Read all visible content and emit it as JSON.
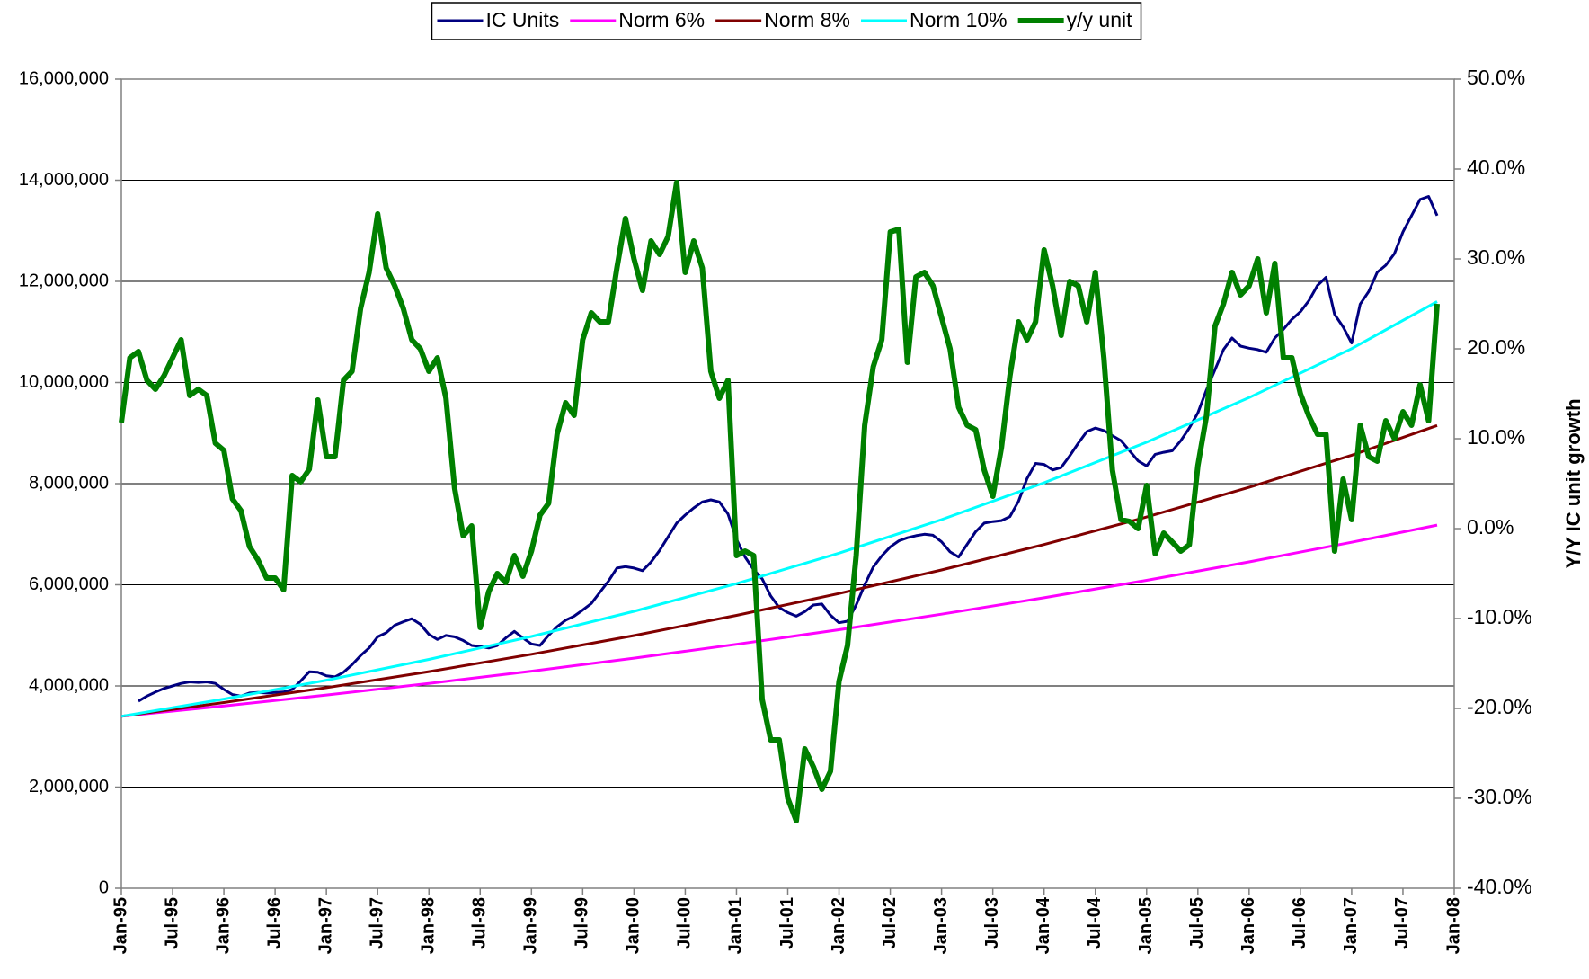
{
  "chart_data": {
    "type": "line",
    "x": [
      "1995-01",
      "1995-02",
      "1995-03",
      "1995-04",
      "1995-05",
      "1995-06",
      "1995-07",
      "1995-08",
      "1995-09",
      "1995-10",
      "1995-11",
      "1995-12",
      "1996-01",
      "1996-02",
      "1996-03",
      "1996-04",
      "1996-05",
      "1996-06",
      "1996-07",
      "1996-08",
      "1996-09",
      "1996-10",
      "1996-11",
      "1996-12",
      "1997-01",
      "1997-02",
      "1997-03",
      "1997-04",
      "1997-05",
      "1997-06",
      "1997-07",
      "1997-08",
      "1997-09",
      "1997-10",
      "1997-11",
      "1997-12",
      "1998-01",
      "1998-02",
      "1998-03",
      "1998-04",
      "1998-05",
      "1998-06",
      "1998-07",
      "1998-08",
      "1998-09",
      "1998-10",
      "1998-11",
      "1998-12",
      "1999-01",
      "1999-02",
      "1999-03",
      "1999-04",
      "1999-05",
      "1999-06",
      "1999-07",
      "1999-08",
      "1999-09",
      "1999-10",
      "1999-11",
      "1999-12",
      "2000-01",
      "2000-02",
      "2000-03",
      "2000-04",
      "2000-05",
      "2000-06",
      "2000-07",
      "2000-08",
      "2000-09",
      "2000-10",
      "2000-11",
      "2000-12",
      "2001-01",
      "2001-02",
      "2001-03",
      "2001-04",
      "2001-05",
      "2001-06",
      "2001-07",
      "2001-08",
      "2001-09",
      "2001-10",
      "2001-11",
      "2001-12",
      "2002-01",
      "2002-02",
      "2002-03",
      "2002-04",
      "2002-05",
      "2002-06",
      "2002-07",
      "2002-08",
      "2002-09",
      "2002-10",
      "2002-11",
      "2002-12",
      "2003-01",
      "2003-02",
      "2003-03",
      "2003-04",
      "2003-05",
      "2003-06",
      "2003-07",
      "2003-08",
      "2003-09",
      "2003-10",
      "2003-11",
      "2003-12",
      "2004-01",
      "2004-02",
      "2004-03",
      "2004-04",
      "2004-05",
      "2004-06",
      "2004-07",
      "2004-08",
      "2004-09",
      "2004-10",
      "2004-11",
      "2004-12",
      "2005-01",
      "2005-02",
      "2005-03",
      "2005-04",
      "2005-05",
      "2005-06",
      "2005-07",
      "2005-08",
      "2005-09",
      "2005-10",
      "2005-11",
      "2005-12",
      "2006-01",
      "2006-02",
      "2006-03",
      "2006-04",
      "2006-05",
      "2006-06",
      "2006-07",
      "2006-08",
      "2006-09",
      "2006-10",
      "2006-11",
      "2006-12",
      "2007-01",
      "2007-02",
      "2007-03",
      "2007-04",
      "2007-05",
      "2007-06",
      "2007-07",
      "2007-08",
      "2007-09",
      "2007-10",
      "2007-11"
    ],
    "series": [
      {
        "name": "IC Units",
        "color": "#000080",
        "values": [
          null,
          null,
          3700000,
          3800000,
          3880000,
          3950000,
          4000000,
          4050000,
          4080000,
          4070000,
          4080000,
          4050000,
          3930000,
          3830000,
          3800000,
          3860000,
          3870000,
          3860000,
          3870000,
          3880000,
          3930000,
          4100000,
          4280000,
          4270000,
          4200000,
          4180000,
          4270000,
          4420000,
          4600000,
          4750000,
          4970000,
          5050000,
          5200000,
          5270000,
          5330000,
          5220000,
          5020000,
          4920000,
          5000000,
          4970000,
          4900000,
          4800000,
          4780000,
          4750000,
          4800000,
          4950000,
          5080000,
          4950000,
          4830000,
          4800000,
          5000000,
          5170000,
          5300000,
          5380000,
          5500000,
          5630000,
          5850000,
          6070000,
          6330000,
          6360000,
          6330000,
          6280000,
          6450000,
          6680000,
          6950000,
          7220000,
          7380000,
          7520000,
          7640000,
          7680000,
          7640000,
          7400000,
          6900000,
          6550000,
          6300000,
          6120000,
          5780000,
          5550000,
          5450000,
          5380000,
          5470000,
          5600000,
          5620000,
          5400000,
          5250000,
          5280000,
          5600000,
          6000000,
          6350000,
          6570000,
          6750000,
          6870000,
          6930000,
          6970000,
          7000000,
          6980000,
          6850000,
          6650000,
          6550000,
          6800000,
          7050000,
          7220000,
          7250000,
          7270000,
          7350000,
          7650000,
          8100000,
          8400000,
          8380000,
          8270000,
          8320000,
          8550000,
          8800000,
          9030000,
          9100000,
          9050000,
          8950000,
          8850000,
          8650000,
          8450000,
          8350000,
          8580000,
          8620000,
          8650000,
          8850000,
          9100000,
          9400000,
          9850000,
          10250000,
          10650000,
          10880000,
          10720000,
          10680000,
          10650000,
          10600000,
          10880000,
          11050000,
          11250000,
          11400000,
          11620000,
          11920000,
          12080000,
          11350000,
          11100000,
          10780000,
          11550000,
          11800000,
          12180000,
          12320000,
          12550000,
          12980000,
          13300000,
          13620000,
          13680000,
          13300000
        ]
      },
      {
        "name": "Norm 6%",
        "color": "#ff00ff",
        "x": [
          "1995-01",
          "1996-01",
          "1997-01",
          "1998-01",
          "1999-01",
          "2000-01",
          "2001-01",
          "2002-01",
          "2003-01",
          "2004-01",
          "2005-01",
          "2006-01",
          "2007-01",
          "2007-11"
        ],
        "values": [
          3400000,
          3604000,
          3820000,
          4049000,
          4292000,
          4550000,
          4823000,
          5112000,
          5419000,
          5744000,
          6089000,
          6454000,
          6841000,
          7180000
        ]
      },
      {
        "name": "Norm 8%",
        "color": "#800000",
        "x": [
          "1995-01",
          "1996-01",
          "1997-01",
          "1998-01",
          "1999-01",
          "2000-01",
          "2001-01",
          "2002-01",
          "2003-01",
          "2004-01",
          "2005-01",
          "2006-01",
          "2007-01",
          "2007-11"
        ],
        "values": [
          3400000,
          3672000,
          3966000,
          4283000,
          4626000,
          4996000,
          5395000,
          5827000,
          6293000,
          6797000,
          7340000,
          7927000,
          8562000,
          9150000
        ]
      },
      {
        "name": "Norm 10%",
        "color": "#00ffff",
        "x": [
          "1995-01",
          "1996-01",
          "1997-01",
          "1998-01",
          "1999-01",
          "2000-01",
          "2001-01",
          "2002-01",
          "2003-01",
          "2004-01",
          "2005-01",
          "2006-01",
          "2007-01",
          "2007-11"
        ],
        "values": [
          3400000,
          3740000,
          4114000,
          4525000,
          4978000,
          5476000,
          6023000,
          6626000,
          7288000,
          8017000,
          8819000,
          9701000,
          10671000,
          11600000
        ]
      },
      {
        "name": "y/y unit",
        "color": "#008000",
        "axis": "y2",
        "values": [
          11.8,
          19,
          19.7,
          16.5,
          15.5,
          17,
          19,
          21,
          14.8,
          15.5,
          14.8,
          9.5,
          8.7,
          3.3,
          2,
          -2,
          -3.5,
          -5.5,
          -5.5,
          -6.8,
          5.9,
          5.2,
          6.6,
          14.3,
          8,
          8,
          16.5,
          17.5,
          24.5,
          28.5,
          35,
          29,
          27,
          24.5,
          21,
          20,
          17.5,
          19,
          14.5,
          4.5,
          -0.8,
          0.3,
          -11,
          -7,
          -5,
          -6,
          -3,
          -5.3,
          -2.5,
          1.5,
          2.8,
          10.5,
          14,
          12.6,
          21,
          24,
          23,
          23,
          29,
          34.5,
          30,
          26.5,
          32,
          30.5,
          32.5,
          38.5,
          28.5,
          32,
          29,
          17.5,
          14.5,
          16.5,
          -3,
          -2.5,
          -3,
          -19,
          -23.5,
          -23.5,
          -30,
          -32.5,
          -24.5,
          -26.5,
          -29,
          -27,
          -17,
          -13,
          -3,
          11.5,
          18,
          21,
          33,
          33.3,
          18.5,
          28,
          28.5,
          27,
          23.5,
          20,
          13.5,
          11.5,
          11,
          6.5,
          3.6,
          9,
          17,
          23,
          21,
          23,
          31,
          27,
          21.5,
          27.5,
          27,
          23,
          28.5,
          19,
          6.5,
          1,
          0.8,
          0,
          4.8,
          -2.8,
          -0.5,
          -1.5,
          -2.5,
          -1.8,
          7,
          12.5,
          22.5,
          25,
          28.5,
          26,
          27,
          30,
          24,
          29.5,
          19,
          19,
          15,
          12.5,
          10.5,
          10.5,
          -2.5,
          5.5,
          1,
          11.5,
          8,
          7.5,
          12,
          10,
          13,
          11.5,
          16,
          12,
          25
        ]
      }
    ],
    "xlim": [
      "1995-01",
      "2008-01"
    ],
    "xticks": [
      {
        "value": "1995-01",
        "label": "Jan-95"
      },
      {
        "value": "1995-07",
        "label": "Jul-95"
      },
      {
        "value": "1996-01",
        "label": "Jan-96"
      },
      {
        "value": "1996-07",
        "label": "Jul-96"
      },
      {
        "value": "1997-01",
        "label": "Jan-97"
      },
      {
        "value": "1997-07",
        "label": "Jul-97"
      },
      {
        "value": "1998-01",
        "label": "Jan-98"
      },
      {
        "value": "1998-07",
        "label": "Jul-98"
      },
      {
        "value": "1999-01",
        "label": "Jan-99"
      },
      {
        "value": "1999-07",
        "label": "Jul-99"
      },
      {
        "value": "2000-01",
        "label": "Jan-00"
      },
      {
        "value": "2000-07",
        "label": "Jul-00"
      },
      {
        "value": "2001-01",
        "label": "Jan-01"
      },
      {
        "value": "2001-07",
        "label": "Jul-01"
      },
      {
        "value": "2002-01",
        "label": "Jan-02"
      },
      {
        "value": "2002-07",
        "label": "Jul-02"
      },
      {
        "value": "2003-01",
        "label": "Jan-03"
      },
      {
        "value": "2003-07",
        "label": "Jul-03"
      },
      {
        "value": "2004-01",
        "label": "Jan-04"
      },
      {
        "value": "2004-07",
        "label": "Jul-04"
      },
      {
        "value": "2005-01",
        "label": "Jan-05"
      },
      {
        "value": "2005-07",
        "label": "Jul-05"
      },
      {
        "value": "2006-01",
        "label": "Jan-06"
      },
      {
        "value": "2006-07",
        "label": "Jul-06"
      },
      {
        "value": "2007-01",
        "label": "Jan-07"
      },
      {
        "value": "2007-07",
        "label": "Jul-07"
      },
      {
        "value": "2008-01",
        "label": "Jan-08"
      }
    ],
    "ylim": [
      0,
      16000000
    ],
    "yticks": [
      0,
      {
        "value": 2000000,
        "label": "2,000,000"
      },
      {
        "value": 4000000,
        "label": "4,000,000"
      },
      {
        "value": 6000000,
        "label": "6,000,000"
      },
      {
        "value": 8000000,
        "label": "8,000,000"
      },
      {
        "value": 10000000,
        "label": "10,000,000"
      },
      {
        "value": 12000000,
        "label": "12,000,000"
      },
      {
        "value": 14000000,
        "label": "14,000,000"
      },
      {
        "value": 16000000,
        "label": "16,000,000"
      }
    ],
    "y2lim": [
      -40,
      50
    ],
    "y2ticks": [
      {
        "value": -40,
        "label": "-40.0%"
      },
      {
        "value": -30,
        "label": "-30.0%"
      },
      {
        "value": -20,
        "label": "-20.0%"
      },
      {
        "value": -10,
        "label": "-10.0%"
      },
      {
        "value": 0,
        "label": "0.0%"
      },
      {
        "value": 10,
        "label": "10.0%"
      },
      {
        "value": 20,
        "label": "20.0%"
      },
      {
        "value": 30,
        "label": "30.0%"
      },
      {
        "value": 40,
        "label": "40.0%"
      },
      {
        "value": 50,
        "label": "50.0%"
      }
    ],
    "y2label": "Y/Y IC unit growth",
    "grid": true,
    "legend": "top"
  }
}
